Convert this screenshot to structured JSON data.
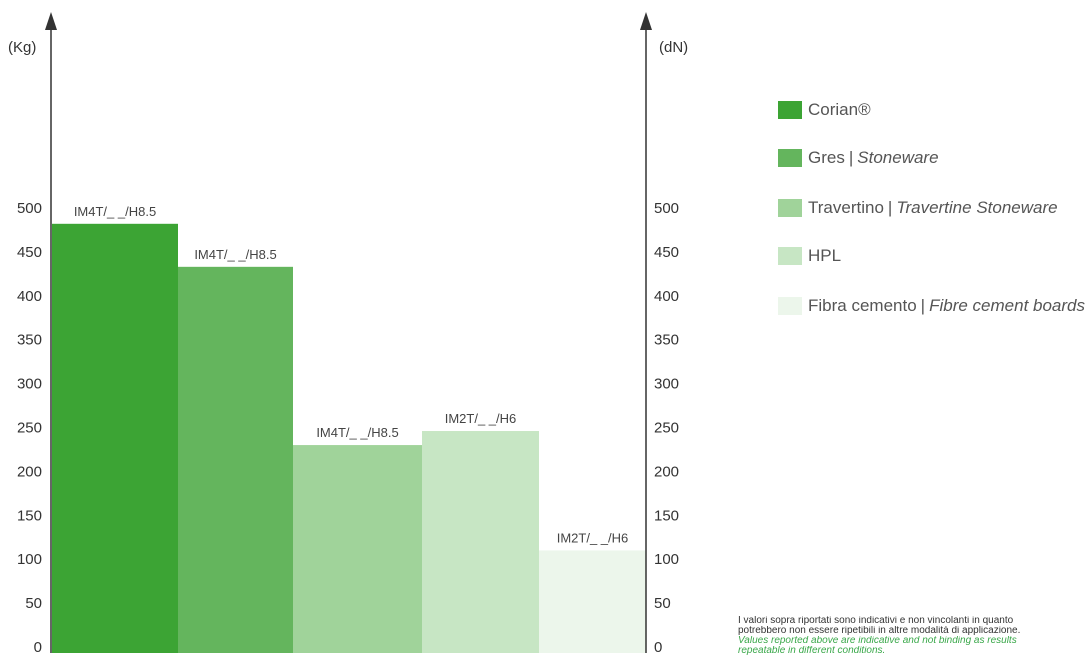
{
  "chart_data": {
    "type": "bar",
    "categories": [
      "Corian®",
      "Gres | Stoneware",
      "Travertino | Travertine Stoneware",
      "HPL",
      "Fibra cemento | Fibre cement boards"
    ],
    "values": [
      482,
      433,
      230,
      246,
      110
    ],
    "bar_labels": [
      "IM4T/_ _/H8.5",
      "IM4T/_ _/H8.5",
      "IM4T/_ _/H8.5",
      "IM2T/_ _/H6",
      "IM2T/_ _/H6"
    ],
    "colors": [
      "#3ca434",
      "#64b55d",
      "#a0d39a",
      "#c7e6c4",
      "#ecf6eb"
    ],
    "y_left_unit": "(Kg)",
    "y_right_unit": "(dN)",
    "yticks": [
      0,
      50,
      100,
      150,
      200,
      250,
      300,
      350,
      400,
      450,
      500
    ],
    "ylim": [
      0,
      500
    ],
    "grid": false,
    "legend_position": "right"
  },
  "legend": {
    "items": [
      {
        "main": "Corian®",
        "sep": "",
        "sub": ""
      },
      {
        "main": "Gres",
        "sep": "|",
        "sub": "Stoneware"
      },
      {
        "main": "Travertino",
        "sep": "|",
        "sub": "Travertine Stoneware"
      },
      {
        "main": "HPL",
        "sep": "",
        "sub": ""
      },
      {
        "main": "Fibra cemento",
        "sep": "|",
        "sub": "Fibre cement boards"
      }
    ]
  },
  "note": {
    "line1": "I valori sopra riportati sono indicativi e non vincolanti in quanto",
    "line2": "potrebbero non essere ripetibili in altre modalità di applicazione.",
    "line3": "Values reported above are indicative and not binding as results",
    "line4": "repeatable in different conditions."
  }
}
